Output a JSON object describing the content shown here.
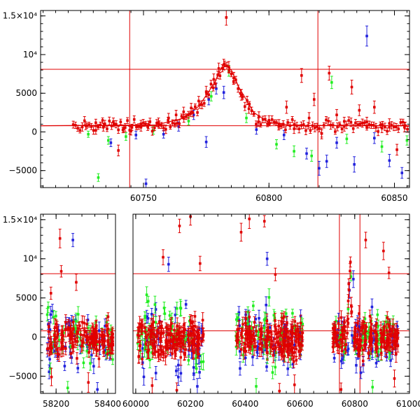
{
  "colors": {
    "model": "#e00000",
    "series": [
      "#e00000",
      "#2222dd",
      "#22ee22"
    ]
  },
  "chart_data": [
    {
      "type": "scatter",
      "title": "",
      "xlabel": "",
      "ylabel": "",
      "xlim": [
        60709,
        60856
      ],
      "ylim": [
        -7200,
        15700
      ],
      "grid": false,
      "x_ticks": [
        60750,
        60800,
        60850
      ],
      "x_minor_step": 5,
      "y_ticks": [
        {
          "value": -5000,
          "label": "−5000"
        },
        {
          "value": 0,
          "label": "0"
        },
        {
          "value": 5000,
          "label": "5000"
        },
        {
          "value": 10000,
          "label": "10⁴"
        },
        {
          "value": 15000,
          "label": "1.5×10⁴"
        }
      ],
      "y_minor_step": 1000,
      "hlines": [
        8100,
        800
      ],
      "vlines": [
        60744.5,
        60819.5
      ],
      "model_curve": {
        "x": [
          60709,
          60755,
          60765,
          60772,
          60778,
          60781,
          60783,
          60785,
          60788,
          60794,
          60800,
          60810,
          60856
        ],
        "y": [
          800,
          900,
          1700,
          3300,
          6200,
          8300,
          8600,
          8000,
          5800,
          2500,
          1200,
          850,
          800
        ]
      },
      "series": [
        {
          "color": "red",
          "points": [
            {
              "x": 60727,
              "y": 800,
              "err": 500
            },
            {
              "x": 60731,
              "y": 200,
              "err": 500
            },
            {
              "x": 60734,
              "y": 600,
              "err": 500
            },
            {
              "x": 60738,
              "y": 1300,
              "err": 500
            },
            {
              "x": 60742,
              "y": 400,
              "err": 500
            },
            {
              "x": 60745,
              "y": 100,
              "err": 500
            },
            {
              "x": 60749,
              "y": 600,
              "err": 500
            },
            {
              "x": 60752,
              "y": 900,
              "err": 500
            },
            {
              "x": 60756,
              "y": 1200,
              "err": 600
            },
            {
              "x": 60760,
              "y": 1800,
              "err": 600
            },
            {
              "x": 60763,
              "y": 2200,
              "err": 600
            },
            {
              "x": 60766,
              "y": 2600,
              "err": 600
            },
            {
              "x": 60769,
              "y": 3100,
              "err": 600
            },
            {
              "x": 60772,
              "y": 4000,
              "err": 600
            },
            {
              "x": 60775,
              "y": 5200,
              "err": 700
            },
            {
              "x": 60778,
              "y": 6800,
              "err": 700
            },
            {
              "x": 60780,
              "y": 8200,
              "err": 700
            },
            {
              "x": 60782,
              "y": 8700,
              "err": 700
            },
            {
              "x": 60783,
              "y": 14800,
              "err": 1000
            },
            {
              "x": 60784,
              "y": 8400,
              "err": 700
            },
            {
              "x": 60786,
              "y": 7000,
              "err": 700
            },
            {
              "x": 60789,
              "y": 4800,
              "err": 700
            },
            {
              "x": 60792,
              "y": 3000,
              "err": 600
            },
            {
              "x": 60796,
              "y": 2000,
              "err": 600
            },
            {
              "x": 60800,
              "y": 1500,
              "err": 600
            },
            {
              "x": 60804,
              "y": 1000,
              "err": 600
            },
            {
              "x": 60807,
              "y": 3200,
              "err": 800
            },
            {
              "x": 60810,
              "y": 400,
              "err": 600
            },
            {
              "x": 60813,
              "y": 7300,
              "err": 900
            },
            {
              "x": 60816,
              "y": 1800,
              "err": 700
            },
            {
              "x": 60818,
              "y": 4200,
              "err": 800
            },
            {
              "x": 60821,
              "y": -200,
              "err": 700
            },
            {
              "x": 60824,
              "y": 7600,
              "err": 900
            },
            {
              "x": 60827,
              "y": 2200,
              "err": 700
            },
            {
              "x": 60830,
              "y": 700,
              "err": 600
            },
            {
              "x": 60833,
              "y": 5800,
              "err": 900
            },
            {
              "x": 60836,
              "y": 2800,
              "err": 700
            },
            {
              "x": 60839,
              "y": 1300,
              "err": 600
            },
            {
              "x": 60842,
              "y": 3200,
              "err": 800
            },
            {
              "x": 60845,
              "y": 500,
              "err": 600
            },
            {
              "x": 60848,
              "y": 1100,
              "err": 600
            },
            {
              "x": 60851,
              "y": -2300,
              "err": 700
            },
            {
              "x": 60854,
              "y": 600,
              "err": 600
            },
            {
              "x": 60740,
              "y": -2400,
              "err": 700
            }
          ]
        },
        {
          "color": "blue",
          "points": [
            {
              "x": 60737,
              "y": -1400,
              "err": 500
            },
            {
              "x": 60747,
              "y": -400,
              "err": 500
            },
            {
              "x": 60751,
              "y": -6700,
              "err": 600
            },
            {
              "x": 60758,
              "y": -300,
              "err": 500
            },
            {
              "x": 60764,
              "y": 700,
              "err": 600
            },
            {
              "x": 60770,
              "y": 2200,
              "err": 600
            },
            {
              "x": 60776,
              "y": 4200,
              "err": 700
            },
            {
              "x": 60779,
              "y": 5600,
              "err": 700
            },
            {
              "x": 60782,
              "y": 5100,
              "err": 800
            },
            {
              "x": 60775,
              "y": -1300,
              "err": 700
            },
            {
              "x": 60795,
              "y": 300,
              "err": 600
            },
            {
              "x": 60806,
              "y": -400,
              "err": 600
            },
            {
              "x": 60815,
              "y": -2800,
              "err": 700
            },
            {
              "x": 60820,
              "y": -4700,
              "err": 900
            },
            {
              "x": 60823,
              "y": -3800,
              "err": 800
            },
            {
              "x": 60827,
              "y": -1400,
              "err": 700
            },
            {
              "x": 60834,
              "y": -4200,
              "err": 1000
            },
            {
              "x": 60839,
              "y": 12400,
              "err": 1300
            },
            {
              "x": 60842,
              "y": -800,
              "err": 700
            },
            {
              "x": 60848,
              "y": -3700,
              "err": 800
            },
            {
              "x": 60853,
              "y": -5300,
              "err": 700
            }
          ]
        },
        {
          "color": "green",
          "points": [
            {
              "x": 60728,
              "y": -300,
              "err": 400
            },
            {
              "x": 60732,
              "y": -5900,
              "err": 500
            },
            {
              "x": 60736,
              "y": -1100,
              "err": 500
            },
            {
              "x": 60743,
              "y": -600,
              "err": 500
            },
            {
              "x": 60754,
              "y": 200,
              "err": 500
            },
            {
              "x": 60768,
              "y": 1400,
              "err": 500
            },
            {
              "x": 60777,
              "y": 4600,
              "err": 600
            },
            {
              "x": 60784,
              "y": 7900,
              "err": 700
            },
            {
              "x": 60791,
              "y": 1800,
              "err": 600
            },
            {
              "x": 60803,
              "y": -1600,
              "err": 600
            },
            {
              "x": 60810,
              "y": -2500,
              "err": 700
            },
            {
              "x": 60817,
              "y": -3100,
              "err": 700
            },
            {
              "x": 60825,
              "y": 6400,
              "err": 800
            },
            {
              "x": 60831,
              "y": -900,
              "err": 600
            },
            {
              "x": 60845,
              "y": -1900,
              "err": 700
            },
            {
              "x": 60855,
              "y": -1100,
              "err": 600
            }
          ]
        }
      ]
    },
    {
      "type": "scatter",
      "title": "",
      "xlabel": "",
      "ylabel": "",
      "grid": false,
      "ylim": [
        -7200,
        15700
      ],
      "y_ticks": [
        {
          "value": -5000,
          "label": "−5000"
        },
        {
          "value": 0,
          "label": "0"
        },
        {
          "value": 5000,
          "label": "5000"
        },
        {
          "value": 10000,
          "label": "10⁴"
        },
        {
          "value": 15000,
          "label": "1.5×10⁴"
        }
      ],
      "y_minor_step": 1000,
      "hlines": [
        8100,
        800
      ],
      "x_axis_break": [
        58430,
        59990
      ],
      "x_segments": [
        {
          "xlim": [
            58140,
            58430
          ],
          "ticks": [
            {
              "value": 58200,
              "label": "58200"
            },
            {
              "value": 58400,
              "label": "58400"
            }
          ]
        },
        {
          "xlim": [
            59990,
            61000
          ],
          "ticks": [
            {
              "value": 60000,
              "label": "60000"
            },
            {
              "value": 60200,
              "label": "60200"
            },
            {
              "value": 60400,
              "label": "60400"
            },
            {
              "value": 60600,
              "label": "60600"
            },
            {
              "value": 60800,
              "label": "60800"
            },
            {
              "value": 61000,
              "label": "61000"
            }
          ]
        }
      ],
      "x_minor_step": 50,
      "vlines": [
        60744,
        60819
      ],
      "seasons": [
        {
          "x_range": [
            58165,
            58420
          ],
          "y_center": 0,
          "spread": 1800,
          "n": 140,
          "outliers": [
            {
              "x": 58180,
              "y": 5600
            },
            {
              "x": 58215,
              "y": 12600
            },
            {
              "x": 58220,
              "y": 8400
            },
            {
              "x": 58265,
              "y": 12400
            },
            {
              "x": 58278,
              "y": 7000
            },
            {
              "x": 58245,
              "y": -6500
            },
            {
              "x": 58325,
              "y": -5800
            },
            {
              "x": 58182,
              "y": -5100
            },
            {
              "x": 58360,
              "y": -6700
            }
          ]
        },
        {
          "x_range": [
            60005,
            60250
          ],
          "y_center": 0,
          "spread": 2000,
          "n": 170,
          "outliers": [
            {
              "x": 60100,
              "y": 10200
            },
            {
              "x": 60160,
              "y": 14200
            },
            {
              "x": 60200,
              "y": 15400
            },
            {
              "x": 60120,
              "y": 9300
            },
            {
              "x": 60235,
              "y": 9400
            },
            {
              "x": 60040,
              "y": 5400
            },
            {
              "x": 60060,
              "y": -6200
            },
            {
              "x": 60150,
              "y": -6800
            },
            {
              "x": 60225,
              "y": -6300
            }
          ]
        },
        {
          "x_range": [
            60365,
            60610
          ],
          "y_center": 0,
          "spread": 2000,
          "n": 170,
          "outliers": [
            {
              "x": 60385,
              "y": 13400
            },
            {
              "x": 60415,
              "y": 15100
            },
            {
              "x": 60470,
              "y": 14800
            },
            {
              "x": 60480,
              "y": 10000
            },
            {
              "x": 60510,
              "y": 8000
            },
            {
              "x": 60440,
              "y": -6300
            },
            {
              "x": 60525,
              "y": -6900
            },
            {
              "x": 60580,
              "y": -6100
            }
          ]
        },
        {
          "x_range": [
            60720,
            60960
          ],
          "y_center": 0,
          "spread": 1900,
          "n": 170,
          "flare": {
            "center": 60783,
            "peak": 8600,
            "width": 7
          },
          "outliers": [
            {
              "x": 60840,
              "y": 12400
            },
            {
              "x": 60905,
              "y": 11000
            },
            {
              "x": 60925,
              "y": 8200
            },
            {
              "x": 60795,
              "y": 7400
            },
            {
              "x": 60750,
              "y": -6700
            },
            {
              "x": 60865,
              "y": -6400
            },
            {
              "x": 60945,
              "y": -5300
            }
          ]
        }
      ]
    }
  ]
}
